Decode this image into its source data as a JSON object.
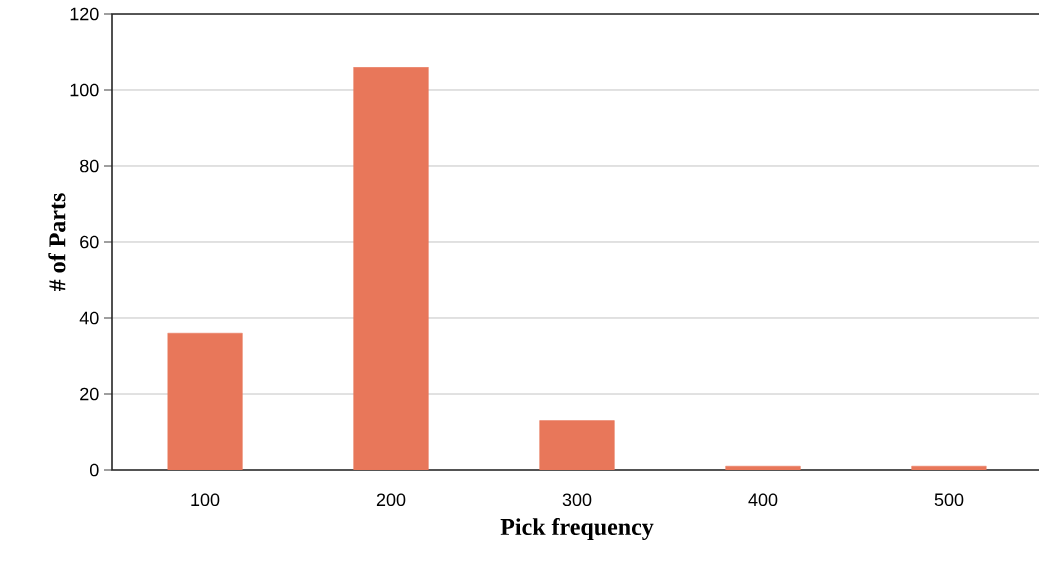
{
  "chart_data": {
    "type": "bar",
    "xlabel": "Pick frequency",
    "ylabel": "# of Parts",
    "categories": [
      "100",
      "200",
      "300",
      "400",
      "500"
    ],
    "values": [
      36,
      106,
      13,
      1,
      1
    ],
    "color": "#e8775a",
    "ylim": [
      0,
      120
    ],
    "yticks": [
      0,
      20,
      40,
      60,
      80,
      100,
      120
    ],
    "grid": "y"
  }
}
